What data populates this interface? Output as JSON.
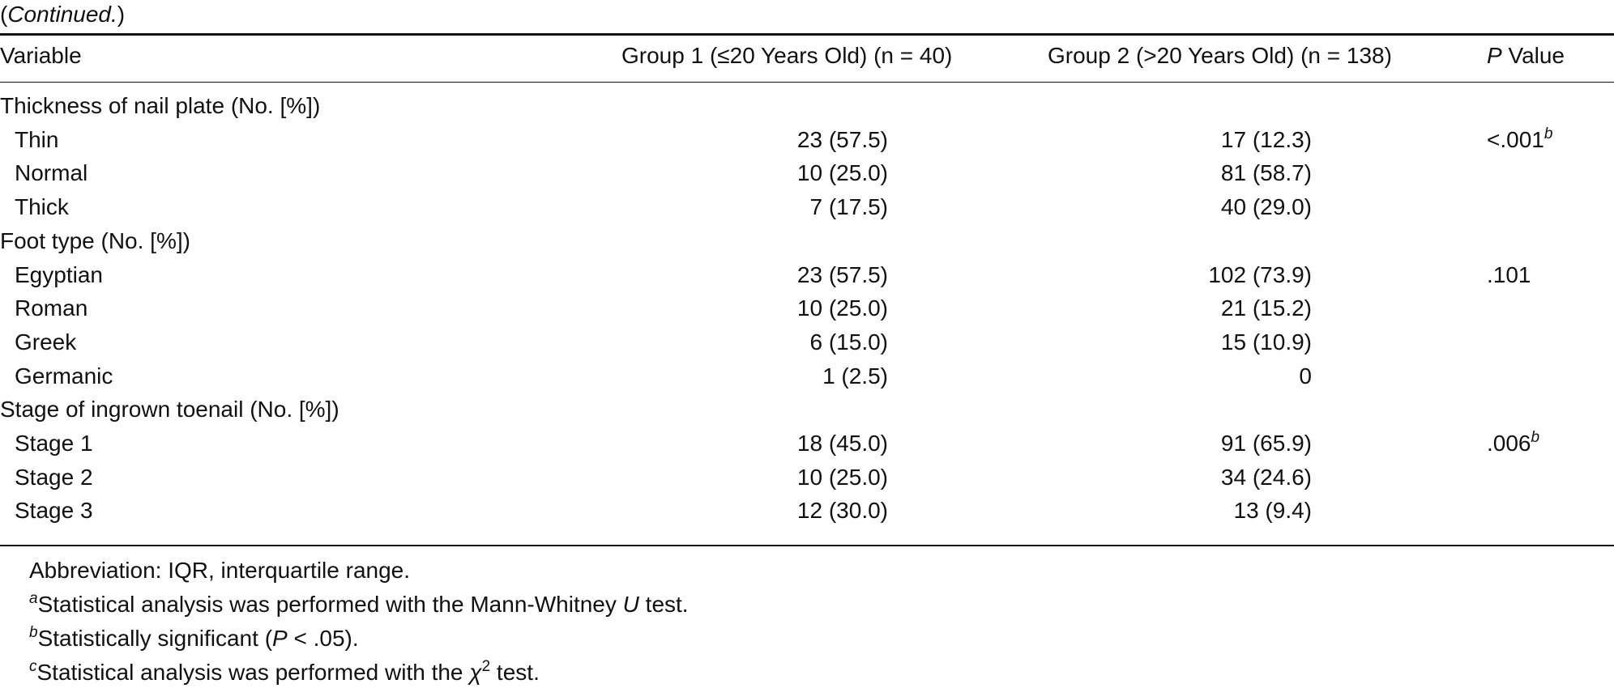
{
  "caption": "Continued.",
  "table": {
    "header": [
      "Variable",
      "Group 1 (≤20 Years Old) (n = 40)",
      "Group 2 (>20 Years Old) (n = 138)",
      {
        "italic": "P",
        "text": "Value"
      }
    ],
    "sections": [
      {
        "name": "Thickness of nail plate (No. [%])",
        "rows": [
          [
            "Thin",
            "23 (57.5)",
            "17 (12.3)",
            {
              "text": "<.001",
              "note": "b"
            }
          ],
          [
            "Normal",
            "10 (25.0)",
            "81 (58.7)",
            null
          ],
          [
            "Thick",
            "7 (17.5)",
            "40 (29.0)",
            null
          ]
        ]
      },
      {
        "name": "Foot type (No. [%])",
        "rows": [
          [
            "Egyptian",
            "23 (57.5)",
            "102 (73.9)",
            {
              "text": ".101",
              "note": null
            }
          ],
          [
            "Roman",
            "10 (25.0)",
            "21 (15.2)",
            null
          ],
          [
            "Greek",
            "6 (15.0)",
            "15 (10.9)",
            null
          ],
          [
            "Germanic",
            "1 (2.5)",
            "0",
            null
          ]
        ]
      },
      {
        "name": "Stage of ingrown toenail (No. [%])",
        "rows": [
          [
            "Stage 1",
            "18 (45.0)",
            "91 (65.9)",
            {
              "text": ".006",
              "note": "b"
            }
          ],
          [
            "Stage 2",
            "10 (25.0)",
            "34 (24.6)",
            null
          ],
          [
            "Stage 3",
            "12 (30.0)",
            "13 (9.4)",
            null
          ]
        ]
      }
    ]
  },
  "footnotes": [
    [
      {
        "text": "Abbreviation: IQR, interquartile range."
      }
    ],
    [
      {
        "sup": "a"
      },
      {
        "text": "Statistical analysis was performed with the Mann-Whitney "
      },
      {
        "italic": "U"
      },
      {
        "text": " test."
      }
    ],
    [
      {
        "sup": "b"
      },
      {
        "text": "Statistically significant ("
      },
      {
        "italic": "P"
      },
      {
        "text": " < .05)."
      }
    ],
    [
      {
        "sup": "c"
      },
      {
        "text": "Statistical analysis was performed with the "
      },
      {
        "italic": "χ"
      },
      {
        "supn": "2"
      },
      {
        "text": " test."
      }
    ]
  ]
}
